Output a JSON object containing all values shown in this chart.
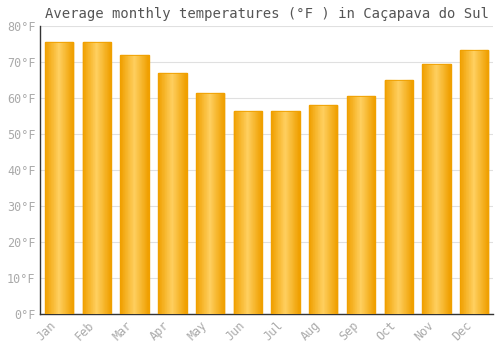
{
  "title": "Average monthly temperatures (°F ) in Caçapava do Sul",
  "months": [
    "Jan",
    "Feb",
    "Mar",
    "Apr",
    "May",
    "Jun",
    "Jul",
    "Aug",
    "Sep",
    "Oct",
    "Nov",
    "Dec"
  ],
  "values": [
    75.5,
    75.5,
    72,
    67,
    61.5,
    56.5,
    56.5,
    58,
    60.5,
    65,
    69.5,
    73.5
  ],
  "bar_color_center": "#FFD060",
  "bar_color_edge": "#F0A000",
  "background_color": "#FFFFFF",
  "plot_bg_color": "#FFFFFF",
  "grid_color": "#E0E0E0",
  "ylim": [
    0,
    80
  ],
  "yticks": [
    0,
    10,
    20,
    30,
    40,
    50,
    60,
    70,
    80
  ],
  "ytick_labels": [
    "0°F",
    "10°F",
    "20°F",
    "30°F",
    "40°F",
    "50°F",
    "60°F",
    "70°F",
    "80°F"
  ],
  "title_fontsize": 10,
  "tick_fontsize": 8.5,
  "tick_color": "#AAAAAA",
  "spine_color": "#AAAAAA",
  "axis_line_color": "#333333",
  "bar_width": 0.75
}
